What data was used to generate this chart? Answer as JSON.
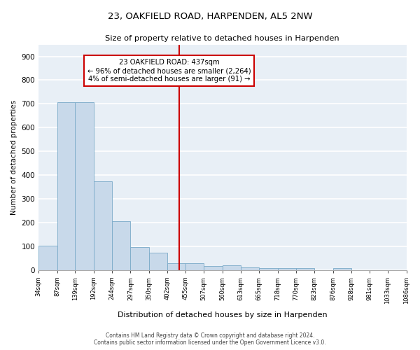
{
  "title": "23, OAKFIELD ROAD, HARPENDEN, AL5 2NW",
  "subtitle": "Size of property relative to detached houses in Harpenden",
  "xlabel": "Distribution of detached houses by size in Harpenden",
  "ylabel": "Number of detached properties",
  "bin_edges": [
    34,
    87,
    139,
    192,
    244,
    297,
    350,
    402,
    455,
    507,
    560,
    613,
    665,
    718,
    770,
    823,
    876,
    928,
    981,
    1033,
    1086
  ],
  "bin_labels": [
    "34sqm",
    "87sqm",
    "139sqm",
    "192sqm",
    "244sqm",
    "297sqm",
    "350sqm",
    "402sqm",
    "455sqm",
    "507sqm",
    "560sqm",
    "613sqm",
    "665sqm",
    "718sqm",
    "770sqm",
    "823sqm",
    "876sqm",
    "928sqm",
    "981sqm",
    "1033sqm",
    "1086sqm"
  ],
  "bar_heights": [
    102,
    706,
    706,
    373,
    205,
    96,
    73,
    28,
    30,
    18,
    20,
    10,
    8,
    9,
    9,
    0,
    8,
    0,
    0,
    0
  ],
  "bar_color": "#c8d9ea",
  "bar_edge_color": "#7aaac8",
  "property_size": 437,
  "vline_color": "#cc0000",
  "annotation_line1": "23 OAKFIELD ROAD: 437sqm",
  "annotation_line2": "← 96% of detached houses are smaller (2,264)",
  "annotation_line3": "4% of semi-detached houses are larger (91) →",
  "annotation_box_color": "#ffffff",
  "annotation_box_edge": "#cc0000",
  "ylim": [
    0,
    950
  ],
  "yticks": [
    0,
    100,
    200,
    300,
    400,
    500,
    600,
    700,
    800,
    900
  ],
  "background_color": "#e8eff6",
  "grid_color": "#ffffff",
  "footer_line1": "Contains HM Land Registry data © Crown copyright and database right 2024.",
  "footer_line2": "Contains public sector information licensed under the Open Government Licence v3.0."
}
